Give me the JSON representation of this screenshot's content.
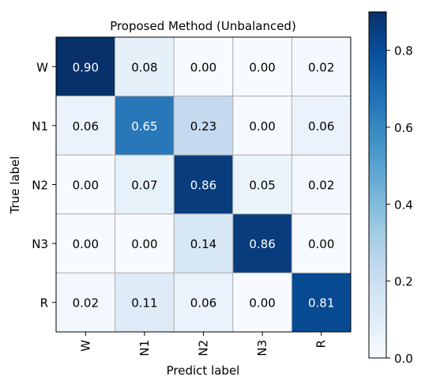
{
  "chart_data": {
    "type": "heatmap",
    "title": "Proposed Method (Unbalanced)",
    "xlabel": "Predict label",
    "ylabel": "True label",
    "x_categories": [
      "W",
      "N1",
      "N2",
      "N3",
      "R"
    ],
    "y_categories": [
      "W",
      "N1",
      "N2",
      "N3",
      "R"
    ],
    "values": [
      [
        0.9,
        0.08,
        0.0,
        0.0,
        0.02
      ],
      [
        0.06,
        0.65,
        0.23,
        0.0,
        0.06
      ],
      [
        0.0,
        0.07,
        0.86,
        0.05,
        0.02
      ],
      [
        0.0,
        0.0,
        0.14,
        0.86,
        0.0
      ],
      [
        0.02,
        0.11,
        0.06,
        0.0,
        0.81
      ]
    ],
    "value_labels": [
      [
        "0.90",
        "0.08",
        "0.00",
        "0.00",
        "0.02"
      ],
      [
        "0.06",
        "0.65",
        "0.23",
        "0.00",
        "0.06"
      ],
      [
        "0.00",
        "0.07",
        "0.86",
        "0.05",
        "0.02"
      ],
      [
        "0.00",
        "0.00",
        "0.14",
        "0.86",
        "0.00"
      ],
      [
        "0.02",
        "0.11",
        "0.06",
        "0.00",
        "0.81"
      ]
    ],
    "colormap": "Blues",
    "color_range": [
      0.0,
      0.9
    ],
    "colorbar_ticks": [
      "0.0",
      "0.2",
      "0.4",
      "0.6",
      "0.8"
    ],
    "colorbar_tick_values": [
      0.0,
      0.2,
      0.4,
      0.6,
      0.8
    ],
    "grid": true
  }
}
